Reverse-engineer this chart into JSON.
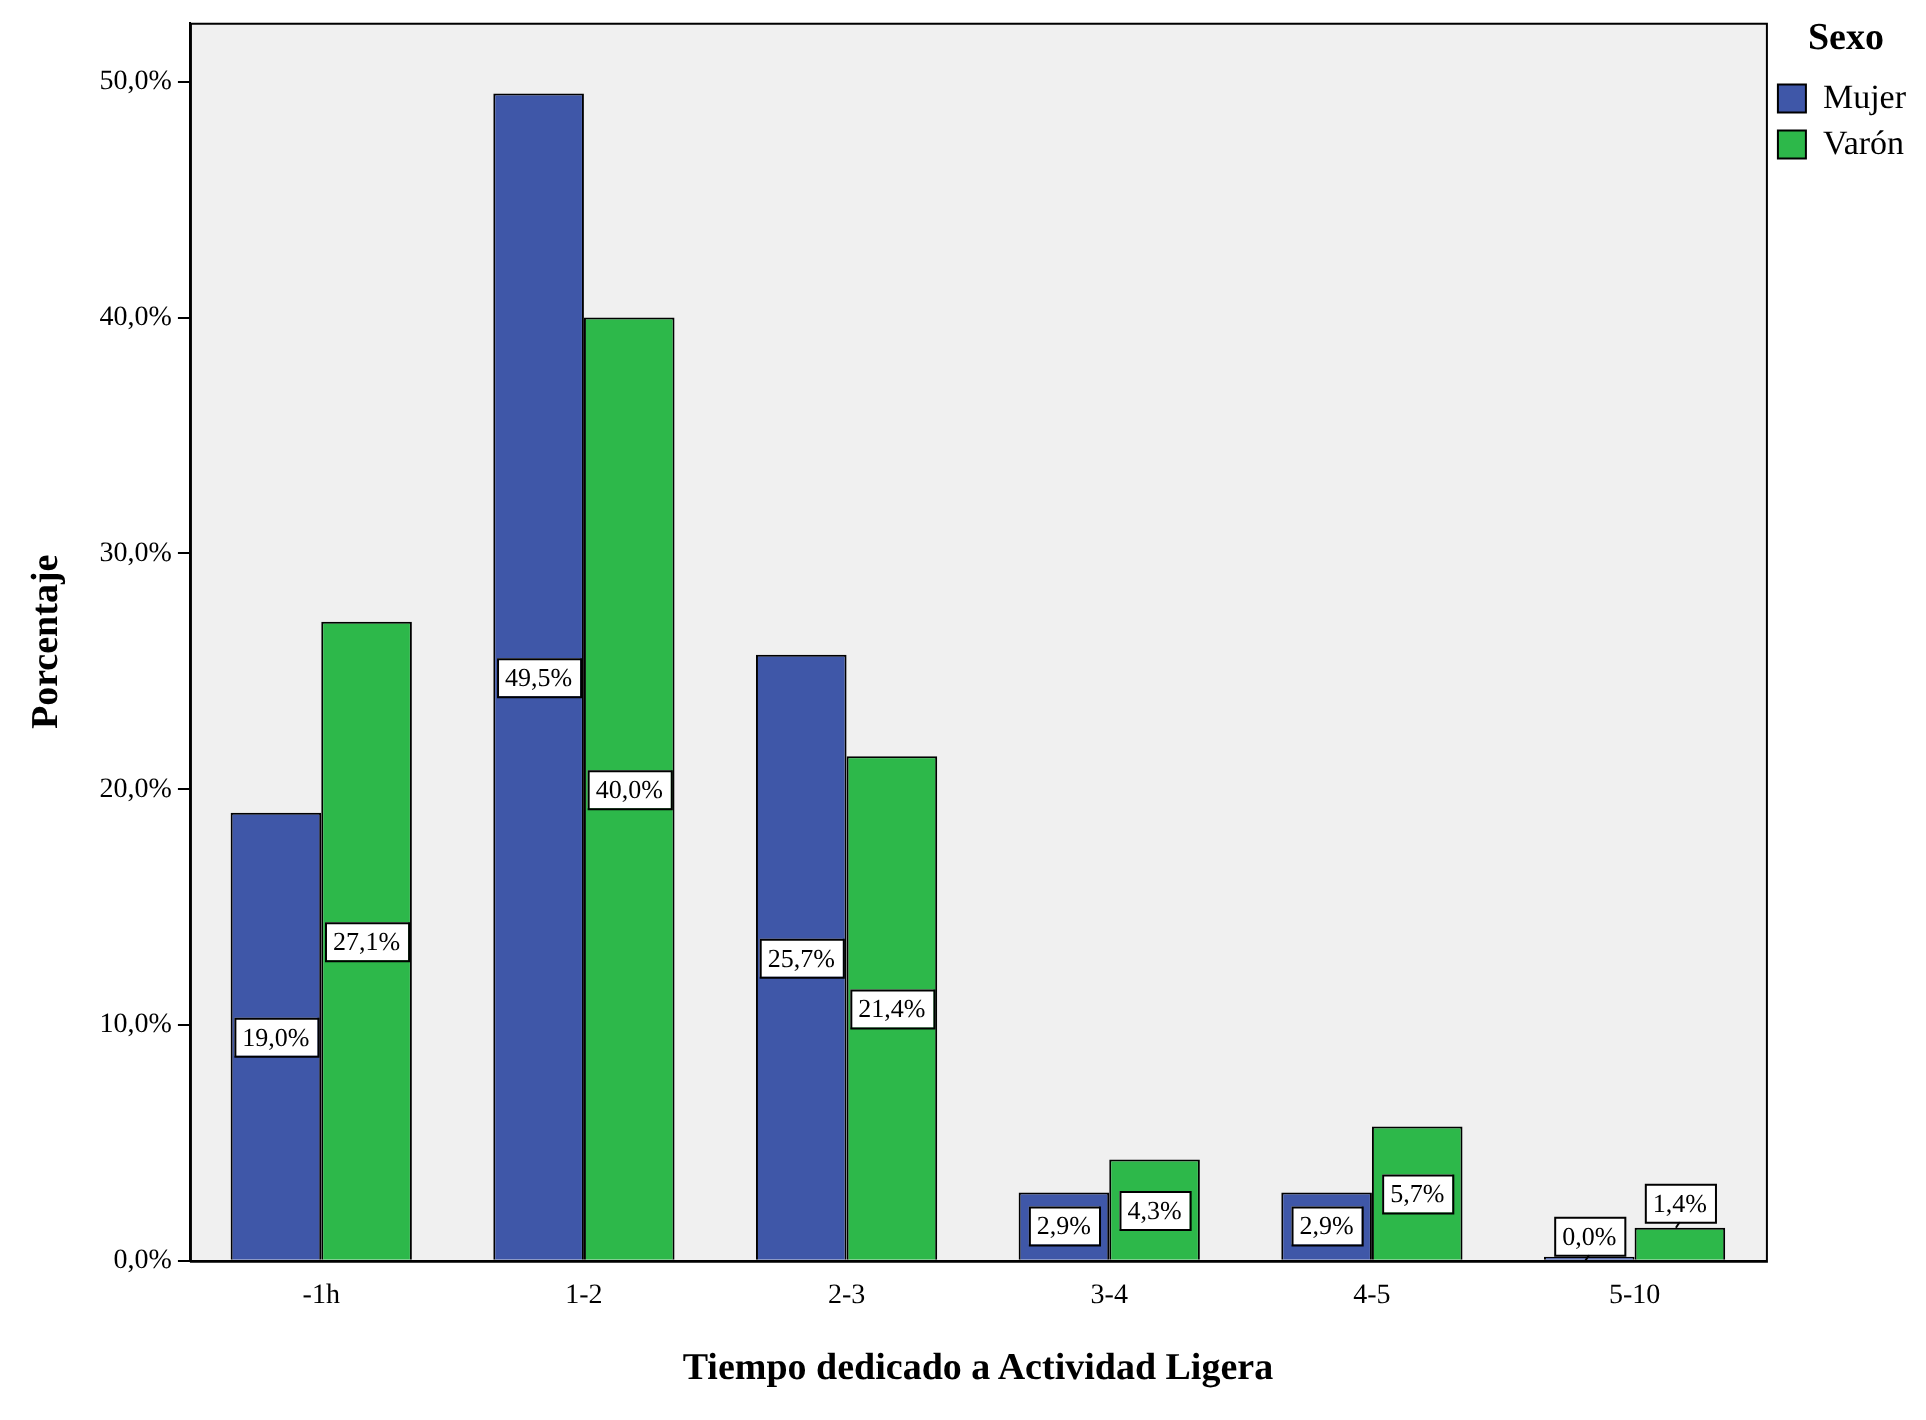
{
  "chart_data": {
    "type": "bar",
    "xlabel": "Tiempo dedicado a Actividad Ligera",
    "ylabel": "Porcentaje",
    "legend_title": "Sexo",
    "legend": "top right",
    "grid": false,
    "categories": [
      "-1h",
      "1-2",
      "2-3",
      "3-4",
      "4-5",
      "5-10"
    ],
    "ylim": [
      0,
      52.5
    ],
    "yticks": [
      {
        "value": 0,
        "label": "0,0%"
      },
      {
        "value": 10,
        "label": "10,0%"
      },
      {
        "value": 20,
        "label": "20,0%"
      },
      {
        "value": 30,
        "label": "30,0%"
      },
      {
        "value": 40,
        "label": "40,0%"
      },
      {
        "value": 50,
        "label": "50,0%"
      }
    ],
    "series": [
      {
        "name": "Mujer",
        "color": "#3f57a8",
        "values": [
          19.0,
          49.5,
          25.7,
          2.9,
          2.9,
          0.0
        ],
        "value_labels": [
          "19,0%",
          "49,5%",
          "25,7%",
          "2,9%",
          "2,9%",
          "0,0%"
        ]
      },
      {
        "name": "Varón",
        "color": "#2db84a",
        "values": [
          27.1,
          40.0,
          21.4,
          4.3,
          5.7,
          1.4
        ],
        "value_labels": [
          "27,1%",
          "40,0%",
          "21,4%",
          "4,3%",
          "5,7%",
          "1,4%"
        ]
      }
    ]
  }
}
